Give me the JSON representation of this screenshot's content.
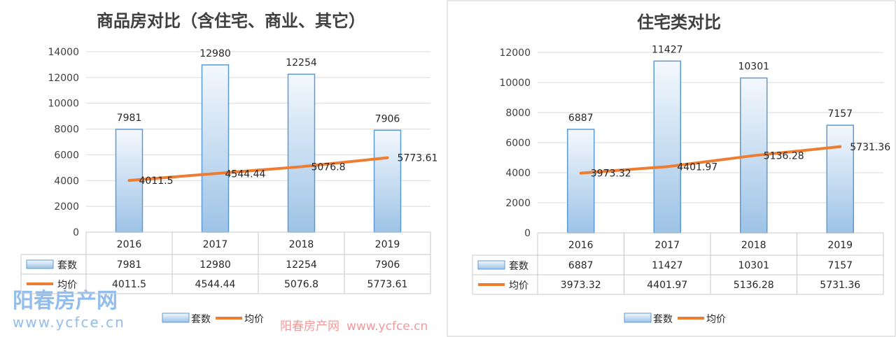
{
  "watermark": {
    "logo": "阳春房产网",
    "url": "www.ycfce.cn",
    "center_text": "阳春房产网",
    "center_url": "www.ycfce.cn"
  },
  "colors": {
    "bar_border": "#5b9bd5",
    "bar_fill_top": "#f4f8fd",
    "bar_fill_bottom": "#9dc3e6",
    "line": "#ed7d31",
    "grid": "#d9d9d9",
    "watermark_blue": "#7fb2ea",
    "watermark_red": "#f08080"
  },
  "chart_data": [
    {
      "type": "bar+line",
      "title": "商品房对比（含住宅、商业、其它）",
      "categories": [
        "2016",
        "2017",
        "2018",
        "2019"
      ],
      "yticks": [
        "0",
        "2000",
        "4000",
        "6000",
        "8000",
        "10000",
        "12000",
        "14000"
      ],
      "ylim": [
        0,
        14000
      ],
      "grid": true,
      "legend_placement": "bottom",
      "data_table": true,
      "series": [
        {
          "name": "套数",
          "kind": "bar",
          "values": [
            7981,
            12980,
            12254,
            7906
          ],
          "labels": [
            "7981",
            "12980",
            "12254",
            "7906"
          ]
        },
        {
          "name": "均价",
          "kind": "line",
          "values": [
            4011.5,
            4544.44,
            5076.8,
            5773.61
          ],
          "labels": [
            "4011.5",
            "4544.44",
            "5076.8",
            "5773.61"
          ]
        }
      ]
    },
    {
      "type": "bar+line",
      "title": "住宅类对比",
      "categories": [
        "2016",
        "2017",
        "2018",
        "2019"
      ],
      "yticks": [
        "0",
        "2000",
        "4000",
        "6000",
        "8000",
        "10000",
        "12000"
      ],
      "ylim": [
        0,
        12000
      ],
      "grid": true,
      "legend_placement": "bottom",
      "data_table": true,
      "series": [
        {
          "name": "套数",
          "kind": "bar",
          "values": [
            6887,
            11427,
            10301,
            7157
          ],
          "labels": [
            "6887",
            "11427",
            "10301",
            "7157"
          ]
        },
        {
          "name": "均价",
          "kind": "line",
          "values": [
            3973.32,
            4401.97,
            5136.28,
            5731.36
          ],
          "labels": [
            "3973.32",
            "4401.97",
            "5136.28",
            "5731.36"
          ]
        }
      ]
    }
  ]
}
